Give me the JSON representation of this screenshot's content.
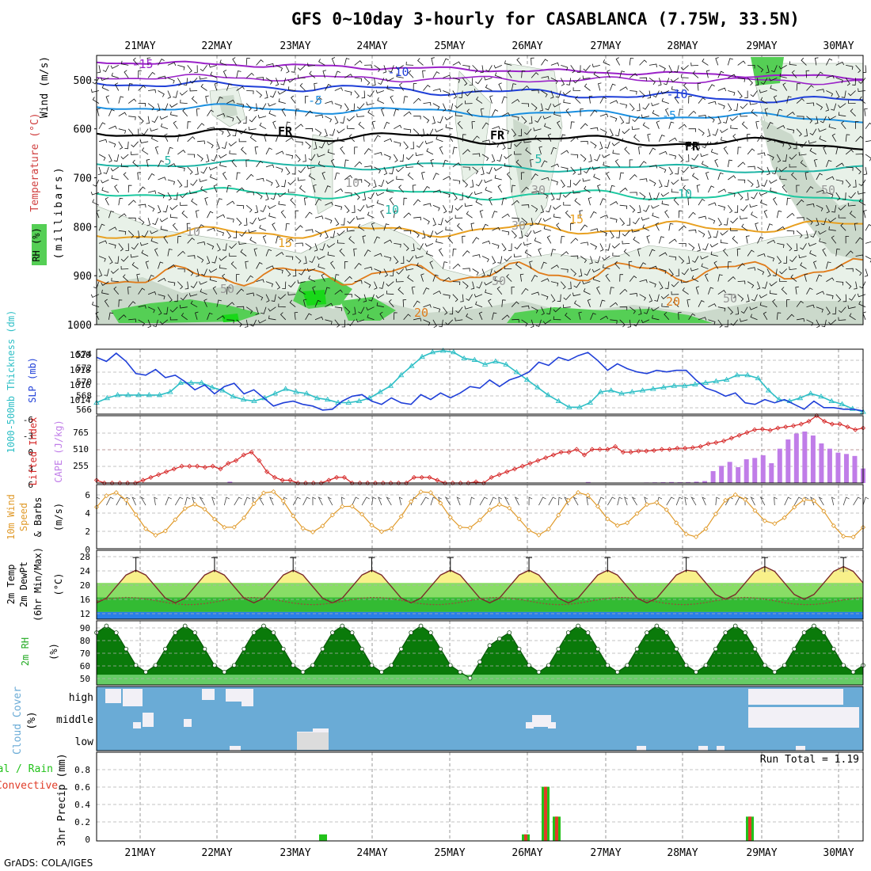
{
  "title": "GFS 0~10day 3-hourly for CASABLANCA (7.75W, 33.5N)",
  "footer": "GrADS: COLA/IGES",
  "dates": [
    "21MAY",
    "22MAY",
    "23MAY",
    "24MAY",
    "25MAY",
    "26MAY",
    "27MAY",
    "28MAY",
    "29MAY",
    "30MAY"
  ],
  "colors": {
    "rh_light": "#e8f1e8",
    "rh_mid": "#cbd9cb",
    "rh_green": "#55cf55",
    "rh_bright": "#19d819",
    "purple": "#9a22c8",
    "blue": "#1f3fd8",
    "lightblue": "#1a8fe0",
    "teal": "#1fb5a6",
    "green_iso": "#1cc8a0",
    "orange": "#e8a020",
    "darkorange": "#e07b1a",
    "fr": "#000000",
    "slp": "#1f3fd8",
    "thick": "#2ebfc6",
    "li": "#d62828",
    "cape": "#c07de8",
    "wind10": "#e09a2a",
    "cloud": "#6aabd6",
    "rain_total": "#22c21a",
    "rain_conv": "#e03c28",
    "t_yellow": "#f8f08a",
    "t_orange": "#f0b050",
    "t_green1": "#88dd66",
    "t_green2": "#33bb33",
    "t_blue": "#2a7fe8"
  },
  "panels": {
    "upper": {
      "ylabel_wind": "Wind (m/s)",
      "ylabel_temp": "Temperature (°C)",
      "ylabel_rh": "RH (%)",
      "ylabel_mb": "(millibars)",
      "levels": [
        "500",
        "600",
        "700",
        "800",
        "900",
        "1000"
      ],
      "iso_labels": [
        "-15",
        "-10",
        "-10",
        "-5",
        "-5",
        "5",
        "5",
        "10",
        "10",
        "15",
        "15",
        "20",
        "20",
        "FR",
        "FR",
        "FR",
        "10",
        "10",
        "30",
        "30",
        "50",
        "50",
        "50",
        "50"
      ]
    },
    "slp": {
      "label_thick": "1000-500mb Thickness (dm)",
      "label_slp": "SLP (mb)",
      "ticks_left": [
        "574",
        "572",
        "570",
        "568",
        "566"
      ],
      "ticks_right": [
        "1020",
        "1018",
        "1016",
        "1014"
      ]
    },
    "cape": {
      "label_li": "Lifted Index",
      "label_cape": "CAPE (J/kg)",
      "ticks_li": [
        "-6",
        "-3",
        "0",
        "3",
        "6"
      ],
      "ticks_cape": [
        "765",
        "510",
        "255"
      ]
    },
    "wind": {
      "label_a": "10m Wind",
      "label_b": "Speed",
      "label_c": "& Barbs",
      "label_d": "(m/s)",
      "ticks": [
        "6",
        "4",
        "2",
        "0"
      ]
    },
    "temp": {
      "label_a": "2m Temp",
      "label_b": "2m DewPt",
      "label_c": "(6hr Min/Max)",
      "label_d": "(°C)",
      "ticks": [
        "28",
        "24",
        "20",
        "16",
        "12"
      ]
    },
    "rh": {
      "label_a": "2m RH",
      "label_b": "(%)",
      "ticks": [
        "90",
        "80",
        "70",
        "60",
        "50"
      ]
    },
    "cloud": {
      "label_a": "Cloud Cover",
      "label_b": "(%)",
      "levels": [
        "high",
        "middle",
        "low"
      ]
    },
    "precip": {
      "label_a": "Total / Rain",
      "label_b": "Convective",
      "label_c": "3hr Precip (mm)",
      "run_total": "Run Total = 1.19",
      "ticks": [
        "0.8",
        "0.6",
        "0.4",
        "0.2",
        "0"
      ]
    }
  },
  "chart_data": [
    {
      "type": "line",
      "name": "SLP",
      "ylabel": "SLP (mb)",
      "ylim": [
        1013,
        1021
      ],
      "values": [
        1020.0,
        1019.5,
        1020.5,
        1019.5,
        1018,
        1017.8,
        1018.5,
        1017.5,
        1017.8,
        1017,
        1016,
        1016.6,
        1015.5,
        1016.4,
        1016.8,
        1015.5,
        1016,
        1015,
        1014,
        1014.4,
        1014.6,
        1014.2,
        1014,
        1013.5,
        1013.6,
        1014.6,
        1015.2,
        1015.4,
        1014.6,
        1014.2,
        1015.0,
        1014.4,
        1014.2,
        1015.4,
        1014.8,
        1015.6,
        1015.0,
        1015.6,
        1016.4,
        1016.2,
        1017.2,
        1016.4,
        1017.2,
        1017.6,
        1018.2,
        1019.4,
        1019.0,
        1020.0,
        1019.6,
        1020.2,
        1020.6,
        1019.6,
        1018.4,
        1019.2,
        1018.6,
        1018.2,
        1018.0,
        1018.4,
        1018.2,
        1018.4,
        1018.4,
        1017.2,
        1016.2,
        1015.8,
        1015.2,
        1015.6,
        1014.4,
        1014.2,
        1014.8,
        1014.4,
        1014.8,
        1014.2,
        1013.6,
        1014.6,
        1013.8,
        1013.8,
        1013.6,
        1013.6,
        1013.4
      ],
      "series2": {
        "name": "1000-500mb Thickness",
        "ylim": [
          565.5,
          574
        ],
        "values": [
          567,
          567.6,
          568,
          568,
          568,
          568,
          568,
          568.4,
          569.6,
          569.6,
          569.6,
          569,
          568.6,
          567.8,
          567.4,
          567.2,
          567.6,
          568.2,
          568.8,
          568.4,
          568.2,
          567.6,
          567.4,
          567,
          567,
          567.2,
          567.6,
          568.4,
          569.2,
          570.6,
          571.8,
          573.0,
          573.6,
          573.8,
          573.6,
          572.8,
          572.6,
          572.0,
          572.4,
          572.0,
          571.0,
          570.0,
          569.0,
          568.0,
          567.2,
          566.4,
          566.4,
          567.0,
          568.4,
          568.6,
          568.2,
          568.4,
          568.6,
          568.8,
          569.0,
          569.2,
          569.2,
          569.4,
          569.6,
          569.8,
          570.0,
          570.6,
          570.6,
          570.2,
          568.6,
          567.4,
          567.2,
          567.6,
          568.2,
          567.8,
          567.2,
          566.8,
          566.2,
          565.8
        ]
      }
    },
    {
      "type": "bar",
      "name": "CAPE",
      "ylabel": "CAPE (J/kg)",
      "ylim": [
        0,
        1020
      ],
      "values": [
        0,
        0,
        0,
        0,
        0,
        0,
        0,
        0,
        0,
        0,
        0,
        0,
        0,
        0,
        0,
        0,
        20,
        0,
        0,
        0,
        0,
        0,
        0,
        0,
        0,
        0,
        0,
        0,
        0,
        0,
        0,
        0,
        0,
        0,
        0,
        0,
        0,
        0,
        0,
        0,
        0,
        0,
        0,
        0,
        0,
        0,
        0,
        0,
        0,
        0,
        0,
        0,
        0,
        0,
        0,
        0,
        0,
        0,
        0,
        15,
        0,
        0,
        0,
        0,
        0,
        5,
        8,
        10,
        12,
        15,
        12,
        14,
        20,
        30,
        180,
        260,
        320,
        240,
        360,
        380,
        420,
        300,
        520,
        660,
        750,
        780,
        720,
        600,
        520,
        460,
        440,
        410,
        220
      ]
    },
    {
      "type": "line",
      "name": "Lifted Index",
      "ylabel": "Lifted Index",
      "ylim": [
        6,
        -6
      ],
      "values": [
        5.5,
        6,
        6,
        6,
        6,
        6,
        5.5,
        5,
        4.5,
        4,
        3.5,
        3,
        3,
        3,
        3.2,
        3,
        3.5,
        2.5,
        2,
        1,
        0.5,
        2,
        4,
        5,
        5.5,
        5.5,
        6,
        6,
        6,
        6,
        5.5,
        5,
        5,
        6,
        6,
        6,
        6,
        6,
        6,
        6,
        6,
        5,
        5,
        5,
        5.5,
        6,
        6,
        6,
        6,
        5.8,
        6,
        5,
        4.5,
        4,
        3.5,
        3,
        2.5,
        2,
        1.5,
        1,
        0.5,
        0.5,
        0,
        1,
        0,
        0,
        0,
        -0.5,
        0.5,
        0.5,
        0.3,
        0.3,
        0.2,
        0,
        0,
        -0.2,
        -0.2,
        -0.3,
        -0.5,
        -1,
        -1.2,
        -1.5,
        -2,
        -2.5,
        -3,
        -3.5,
        -3.6,
        -3.4,
        -3.8,
        -4,
        -4.2,
        -4.5,
        -5,
        -6,
        -5,
        -4.5,
        -4.5,
        -4,
        -3.5,
        -3.8
      ]
    }
  ]
}
